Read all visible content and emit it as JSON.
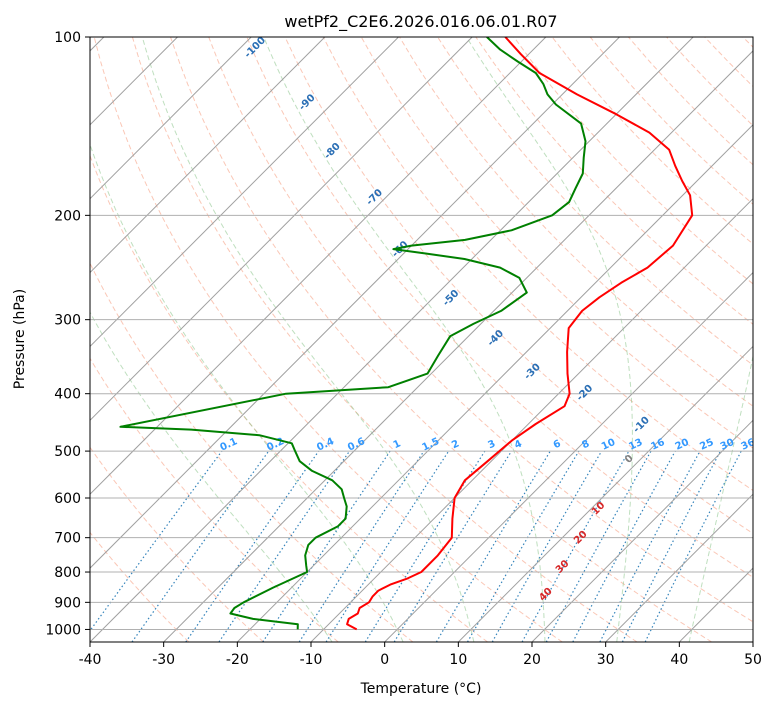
{
  "chart_data": {
    "type": "skewt",
    "title": "wetPf2_C2E6.2026.016.06.01.R07",
    "xlabel": "Temperature (°C)",
    "ylabel": "Pressure (hPa)",
    "xlim": [
      -40,
      50
    ],
    "plim": [
      1050,
      100
    ],
    "x_ticks": [
      -40,
      -30,
      -20,
      -10,
      0,
      10,
      20,
      30,
      40,
      50
    ],
    "p_ticks": [
      1000,
      900,
      800,
      700,
      600,
      500,
      400,
      300,
      200,
      100
    ],
    "isotherms": [
      -130,
      -120,
      -110,
      -100,
      -90,
      -80,
      -70,
      -60,
      -50,
      -40,
      -30,
      -20,
      -10,
      0,
      10,
      20,
      30,
      40,
      50
    ],
    "dry_adiabats": [
      -30,
      -20,
      -10,
      0,
      10,
      20,
      30,
      40,
      50,
      60,
      70,
      80,
      90,
      100,
      110,
      120,
      130,
      140,
      150,
      160,
      170,
      180,
      190,
      200
    ],
    "moist_adiabats": [
      -10,
      0,
      10,
      20,
      30,
      40
    ],
    "mixing_ratios": [
      0.1,
      0.2,
      0.4,
      0.6,
      1,
      1.5,
      2,
      3,
      4,
      6,
      8,
      10,
      13,
      16,
      20,
      25,
      30,
      36
    ],
    "mixing_ratio_labels": [
      "0.1",
      "0.2",
      "0.4",
      "0.6",
      "1",
      "1.5",
      "2",
      "3",
      "4",
      "6",
      "8",
      "10",
      "13",
      "16",
      "20",
      "25",
      "30",
      "36"
    ],
    "theta_e_labels": [
      {
        "text": "-100",
        "T": -97.5,
        "p": 105
      },
      {
        "text": "-90",
        "T": -83,
        "p": 130
      },
      {
        "text": "-80",
        "T": -73,
        "p": 157
      },
      {
        "text": "-70",
        "T": -61,
        "p": 188
      },
      {
        "text": "-60",
        "T": -50.5,
        "p": 230
      },
      {
        "text": "-50",
        "T": -37,
        "p": 278
      },
      {
        "text": "-40",
        "T": -25.5,
        "p": 325
      },
      {
        "text": "-30",
        "T": -16,
        "p": 370
      },
      {
        "text": "-20",
        "T": -6,
        "p": 402
      },
      {
        "text": "-10",
        "T": 6,
        "p": 455
      }
    ],
    "moist_labels": [
      {
        "text": "0",
        "T": 9,
        "p": 520,
        "color": "#808080"
      },
      {
        "text": "10",
        "T": 11.5,
        "p": 630,
        "color": "#d62728"
      },
      {
        "text": "20",
        "T": 13,
        "p": 705,
        "color": "#d62728"
      },
      {
        "text": "30",
        "T": 14.5,
        "p": 790,
        "color": "#d62728"
      },
      {
        "text": "40",
        "T": 16,
        "p": 880,
        "color": "#d62728"
      }
    ],
    "series": [
      {
        "name": "Temperature",
        "color": "#ff0000",
        "points": [
          [
            1000,
            -5.5
          ],
          [
            980,
            -7.5
          ],
          [
            960,
            -8.0
          ],
          [
            940,
            -7.5
          ],
          [
            920,
            -8.0
          ],
          [
            900,
            -7.5
          ],
          [
            880,
            -7.8
          ],
          [
            860,
            -7.8
          ],
          [
            840,
            -7.0
          ],
          [
            820,
            -5.5
          ],
          [
            800,
            -4.5
          ],
          [
            750,
            -4.5
          ],
          [
            700,
            -5.0
          ],
          [
            650,
            -7.5
          ],
          [
            600,
            -10.0
          ],
          [
            560,
            -11.0
          ],
          [
            520,
            -10.5
          ],
          [
            480,
            -10.0
          ],
          [
            450,
            -9.0
          ],
          [
            420,
            -7.5
          ],
          [
            400,
            -8.5
          ],
          [
            370,
            -11.5
          ],
          [
            340,
            -14.5
          ],
          [
            310,
            -17.5
          ],
          [
            290,
            -18.0
          ],
          [
            275,
            -17.5
          ],
          [
            260,
            -16.5
          ],
          [
            245,
            -15.0
          ],
          [
            225,
            -14.5
          ],
          [
            200,
            -16.0
          ],
          [
            185,
            -19.0
          ],
          [
            175,
            -22.0
          ],
          [
            165,
            -25.0
          ],
          [
            155,
            -28.0
          ],
          [
            145,
            -33.0
          ],
          [
            135,
            -40.0
          ],
          [
            125,
            -48.0
          ],
          [
            115,
            -56.0
          ],
          [
            107,
            -61.0
          ],
          [
            100,
            -65.5
          ]
        ]
      },
      {
        "name": "Dewpoint",
        "color": "#008000",
        "points": [
          [
            1000,
            -13.5
          ],
          [
            980,
            -14.2
          ],
          [
            960,
            -21.0
          ],
          [
            940,
            -24.8
          ],
          [
            920,
            -25.0
          ],
          [
            900,
            -24.5
          ],
          [
            850,
            -22.5
          ],
          [
            800,
            -20.0
          ],
          [
            780,
            -21.0
          ],
          [
            750,
            -22.5
          ],
          [
            720,
            -23.5
          ],
          [
            700,
            -23.5
          ],
          [
            670,
            -22.0
          ],
          [
            650,
            -22.0
          ],
          [
            620,
            -23.5
          ],
          [
            600,
            -25.0
          ],
          [
            580,
            -26.5
          ],
          [
            560,
            -29.0
          ],
          [
            540,
            -33.0
          ],
          [
            520,
            -36.0
          ],
          [
            500,
            -38.0
          ],
          [
            485,
            -39.5
          ],
          [
            470,
            -45.0
          ],
          [
            460,
            -55.0
          ],
          [
            455,
            -65.0
          ],
          [
            400,
            -47.0
          ],
          [
            390,
            -34.0
          ],
          [
            370,
            -30.5
          ],
          [
            345,
            -31.5
          ],
          [
            320,
            -32.5
          ],
          [
            305,
            -31.0
          ],
          [
            290,
            -29.0
          ],
          [
            270,
            -28.0
          ],
          [
            255,
            -31.0
          ],
          [
            245,
            -35.0
          ],
          [
            237,
            -41.0
          ],
          [
            232,
            -47.0
          ],
          [
            228,
            -52.0
          ],
          [
            225,
            -50.0
          ],
          [
            220,
            -43.5
          ],
          [
            212,
            -38.5
          ],
          [
            200,
            -35.0
          ],
          [
            190,
            -34.5
          ],
          [
            180,
            -35.5
          ],
          [
            170,
            -36.5
          ],
          [
            160,
            -38.5
          ],
          [
            150,
            -40.5
          ],
          [
            140,
            -43.5
          ],
          [
            130,
            -49.5
          ],
          [
            125,
            -52.0
          ],
          [
            120,
            -54.0
          ],
          [
            115,
            -56.5
          ],
          [
            110,
            -60.5
          ],
          [
            105,
            -64.5
          ],
          [
            100,
            -68.0
          ]
        ]
      }
    ]
  }
}
